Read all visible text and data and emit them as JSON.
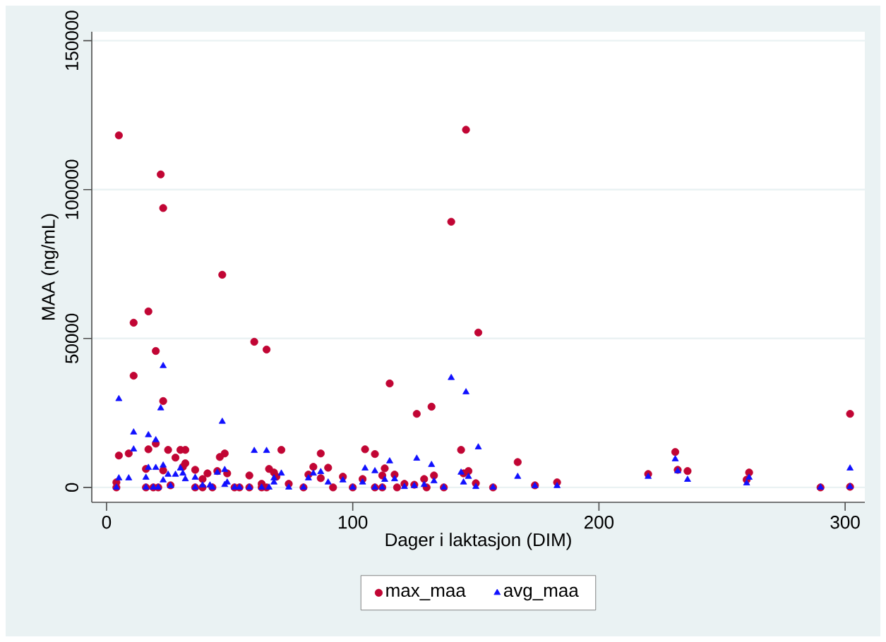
{
  "chart_data": {
    "type": "scatter",
    "xlabel": "Dager i laktasjon (DIM)",
    "ylabel": "MAA (ng/mL)",
    "xlim": [
      -6,
      308
    ],
    "ylim": [
      -5000,
      153000
    ],
    "xticks": [
      0,
      100,
      200,
      300
    ],
    "yticks": [
      0,
      50000,
      100000,
      150000
    ],
    "grid": "y",
    "legend": "bottom",
    "series": [
      {
        "name": "max_maa",
        "color": "#c10534",
        "marker": "circle",
        "x": [
          4,
          4,
          5,
          5,
          9,
          11,
          11,
          16,
          16,
          17,
          17,
          19,
          20,
          20,
          21,
          22,
          23,
          23,
          23,
          25,
          26,
          28,
          30,
          32,
          32,
          31,
          36,
          36,
          39,
          39,
          41,
          43,
          45,
          46,
          47,
          48,
          49,
          52,
          54,
          58,
          58,
          60,
          63,
          63,
          65,
          65,
          66,
          68,
          69,
          71,
          74,
          80,
          82,
          84,
          87,
          87,
          90,
          92,
          96,
          100,
          104,
          105,
          109,
          109,
          112,
          112,
          113,
          115,
          117,
          118,
          121,
          125,
          126,
          129,
          130,
          132,
          133,
          137,
          140,
          144,
          145,
          146,
          147,
          150,
          151,
          157,
          167,
          174,
          183,
          220,
          231,
          232,
          236,
          260,
          261,
          290,
          302,
          302
        ],
        "values": [
          0,
          1700,
          118200,
          10700,
          11400,
          55300,
          37500,
          0,
          6200,
          59100,
          12800,
          0,
          45800,
          14700,
          0,
          105100,
          93800,
          29000,
          5700,
          12600,
          700,
          10000,
          12600,
          12600,
          8100,
          6900,
          5900,
          0,
          2800,
          0,
          4700,
          0,
          5500,
          10200,
          71400,
          11400,
          4700,
          0,
          0,
          4000,
          0,
          48900,
          1200,
          0,
          46300,
          0,
          6200,
          5000,
          3600,
          12600,
          1200,
          0,
          4300,
          6900,
          11400,
          3100,
          6600,
          0,
          3600,
          0,
          2800,
          12800,
          11200,
          0,
          4000,
          0,
          6400,
          34900,
          4300,
          0,
          1200,
          900,
          24700,
          2800,
          0,
          27100,
          4000,
          0,
          89200,
          12600,
          4700,
          120100,
          5500,
          1400,
          52000,
          0,
          8500,
          700,
          1700,
          4500,
          11900,
          5900,
          5500,
          2600,
          5000,
          0,
          24700,
          200
        ]
      },
      {
        "name": "avg_maa",
        "color": "#1010ff",
        "marker": "triangle",
        "x": [
          4,
          5,
          5,
          9,
          11,
          11,
          16,
          16,
          17,
          17,
          19,
          20,
          20,
          21,
          22,
          23,
          23,
          23,
          25,
          26,
          28,
          30,
          31,
          32,
          36,
          36,
          39,
          42,
          43,
          45,
          47,
          48,
          48,
          49,
          52,
          54,
          58,
          60,
          63,
          65,
          66,
          68,
          68,
          71,
          74,
          80,
          82,
          84,
          87,
          90,
          96,
          100,
          104,
          105,
          109,
          109,
          112,
          113,
          115,
          117,
          121,
          125,
          126,
          129,
          132,
          133,
          137,
          140,
          144,
          145,
          146,
          147,
          150,
          151,
          157,
          167,
          174,
          183,
          220,
          231,
          232,
          236,
          260,
          261,
          290,
          302,
          302
        ],
        "values": [
          0,
          29700,
          3100,
          3100,
          18500,
          12800,
          3300,
          0,
          17600,
          6600,
          0,
          15900,
          6600,
          0,
          26600,
          40800,
          7400,
          2400,
          4300,
          500,
          4300,
          6400,
          4700,
          2800,
          3300,
          0,
          700,
          700,
          0,
          5000,
          22100,
          5900,
          900,
          1700,
          0,
          0,
          0,
          12300,
          0,
          12300,
          0,
          3100,
          1700,
          4700,
          0,
          0,
          3100,
          4700,
          5200,
          1700,
          2400,
          0,
          1700,
          6400,
          5500,
          0,
          0,
          2600,
          8800,
          2800,
          200,
          500,
          9700,
          900,
          7600,
          2100,
          0,
          36800,
          5000,
          1700,
          32000,
          3600,
          200,
          13500,
          0,
          3600,
          500,
          500,
          3600,
          9500,
          5500,
          2600,
          1400,
          3300,
          0,
          6400,
          200
        ]
      }
    ]
  }
}
